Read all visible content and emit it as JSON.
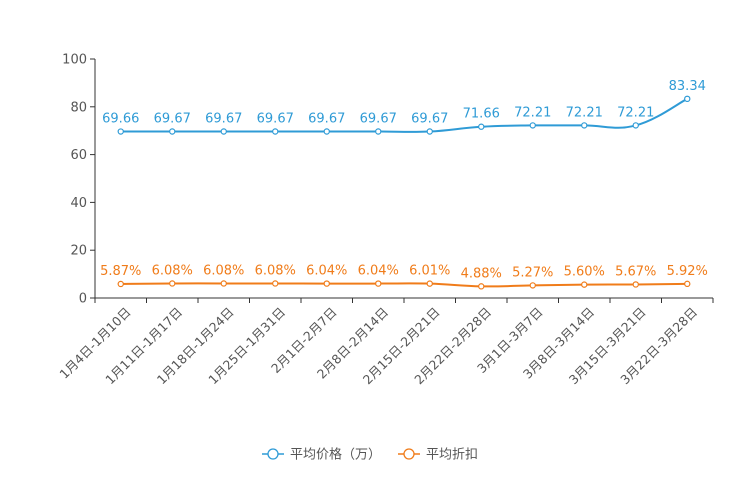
{
  "chart_data": {
    "type": "line",
    "title": "",
    "xlabel": "",
    "ylabel": "",
    "ylim": [
      0,
      100
    ],
    "yticks": [
      0,
      20,
      40,
      60,
      80,
      100
    ],
    "grid": false,
    "legend_position": "bottom-center",
    "categories": [
      "1月4日-1月10日",
      "1月11日-1月17日",
      "1月18日-1月24日",
      "1月25日-1月31日",
      "2月1日-2月7日",
      "2月8日-2月14日",
      "2月15日-2月21日",
      "2月22日-2月28日",
      "3月1日-3月7日",
      "3月8日-3月14日",
      "3月15日-3月21日",
      "3月22日-3月28日"
    ],
    "series": [
      {
        "name": "平均价格（万）",
        "color": "#2f9bd6",
        "values": [
          69.66,
          69.67,
          69.67,
          69.67,
          69.67,
          69.67,
          69.67,
          71.66,
          72.21,
          72.21,
          72.21,
          83.34
        ],
        "labels": [
          "69.66",
          "69.67",
          "69.67",
          "69.67",
          "69.67",
          "69.67",
          "69.67",
          "71.66",
          "72.21",
          "72.21",
          "72.21",
          "83.34"
        ]
      },
      {
        "name": "平均折扣",
        "color": "#f07c1a",
        "values": [
          5.87,
          6.08,
          6.08,
          6.08,
          6.04,
          6.04,
          6.01,
          4.88,
          5.27,
          5.6,
          5.67,
          5.92
        ],
        "labels": [
          "5.87%",
          "6.08%",
          "6.08%",
          "6.08%",
          "6.04%",
          "6.04%",
          "6.01%",
          "4.88%",
          "5.27%",
          "5.60%",
          "5.67%",
          "5.92%"
        ]
      }
    ]
  }
}
